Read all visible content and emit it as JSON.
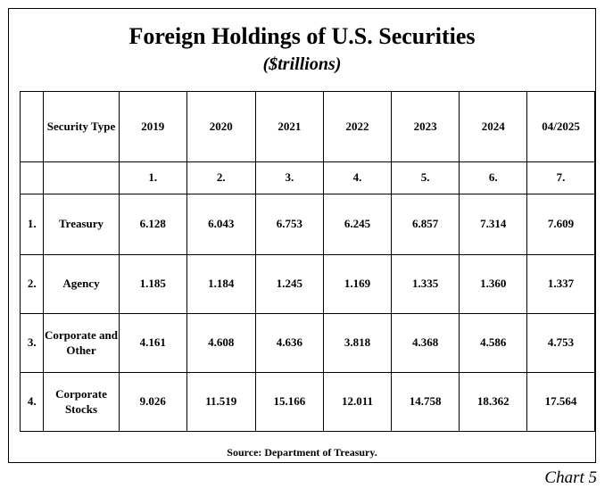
{
  "title": "Foreign Holdings of U.S. Securities",
  "subtitle": "($trillions)",
  "header": {
    "security_type": "Security Type",
    "years": [
      "2019",
      "2020",
      "2021",
      "2022",
      "2023",
      "2024",
      "04/2025"
    ],
    "col_numbers": [
      "1.",
      "2.",
      "3.",
      "4.",
      "5.",
      "6.",
      "7."
    ]
  },
  "rows": [
    {
      "num": "1.",
      "type": "Treasury",
      "values": [
        "6.128",
        "6.043",
        "6.753",
        "6.245",
        "6.857",
        "7.314",
        "7.609"
      ]
    },
    {
      "num": "2.",
      "type": "Agency",
      "values": [
        "1.185",
        "1.184",
        "1.245",
        "1.169",
        "1.335",
        "1.360",
        "1.337"
      ]
    },
    {
      "num": "3.",
      "type": "Corporate and Other",
      "values": [
        "4.161",
        "4.608",
        "4.636",
        "3.818",
        "4.368",
        "4.586",
        "4.753"
      ]
    },
    {
      "num": "4.",
      "type": "Corporate Stocks",
      "values": [
        "9.026",
        "11.519",
        "15.166",
        "12.011",
        "14.758",
        "18.362",
        "17.564"
      ]
    }
  ],
  "source": "Source: Department of Treasury.",
  "caption": "Chart 5",
  "chart_data": {
    "type": "table",
    "title": "Foreign Holdings of U.S. Securities",
    "subtitle": "($trillions)",
    "columns": [
      "2019",
      "2020",
      "2021",
      "2022",
      "2023",
      "2024",
      "04/2025"
    ],
    "series": [
      {
        "name": "Treasury",
        "values": [
          6.128,
          6.043,
          6.753,
          6.245,
          6.857,
          7.314,
          7.609
        ]
      },
      {
        "name": "Agency",
        "values": [
          1.185,
          1.184,
          1.245,
          1.169,
          1.335,
          1.36,
          1.337
        ]
      },
      {
        "name": "Corporate and Other",
        "values": [
          4.161,
          4.608,
          4.636,
          3.818,
          4.368,
          4.586,
          4.753
        ]
      },
      {
        "name": "Corporate Stocks",
        "values": [
          9.026,
          11.519,
          15.166,
          12.011,
          14.758,
          18.362,
          17.564
        ]
      }
    ]
  }
}
